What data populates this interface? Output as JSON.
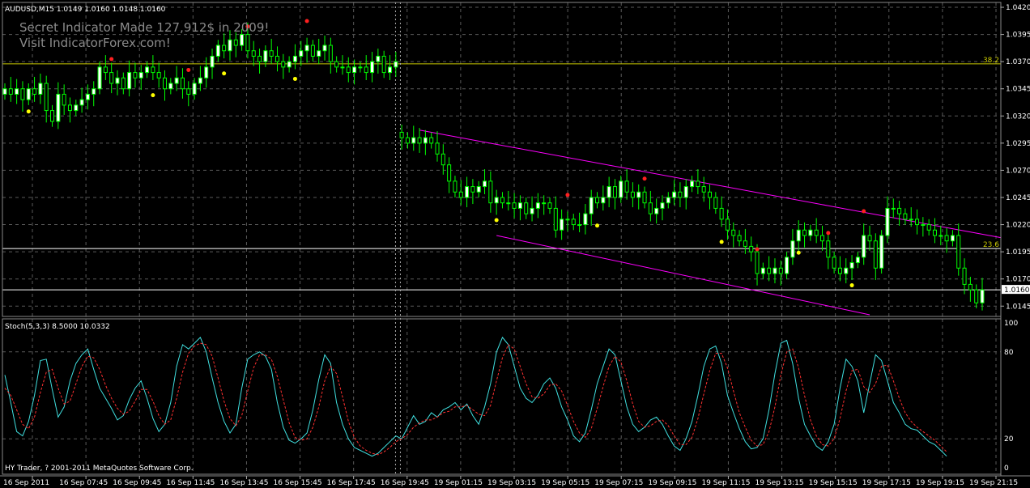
{
  "window": {
    "title": "AUDUSD,M15  1.0149 1.0160 1.0148 1.0160"
  },
  "watermark": {
    "line1": "Secret Indicator Made 127,912$ in 2009!",
    "line2": "Visit IndicatorForex.com!"
  },
  "colors": {
    "background": "#000000",
    "grid": "#5a5a5a",
    "bull_candle": "#ffffff",
    "bear_candle": "#000000",
    "candle_outline": "#00ff00",
    "fib_line": "#c8c800",
    "channel": "#ff00ff",
    "stoch_main": "#40e0e0",
    "stoch_signal": "#ff3030",
    "dot_up": "#ffff00",
    "dot_down": "#ff2020"
  },
  "price_axis": {
    "ticks": [
      "1.0420",
      "1.0395",
      "1.0370",
      "1.0345",
      "1.0320",
      "1.0295",
      "1.0270",
      "1.0245",
      "1.0220",
      "1.0195",
      "1.0170",
      "1.0160",
      "1.0145"
    ]
  },
  "levels": {
    "fib_382": "38.2",
    "fib_236": "23.6",
    "current_price": "1.0160"
  },
  "indicator": {
    "title": "Stoch(5,3,3) 8.5000 10.0332",
    "ticks": [
      "100",
      "80",
      "20",
      "0"
    ],
    "footer": "HY Trader, ? 2001-2011 MetaQuotes Software Corp."
  },
  "time_axis": {
    "labels": [
      "16 Sep 2011",
      "16 Sep 07:45",
      "16 Sep 09:45",
      "16 Sep 11:45",
      "16 Sep 13:45",
      "16 Sep 15:45",
      "16 Sep 17:45",
      "16 Sep 19:45",
      "19 Sep 01:15",
      "19 Sep 03:15",
      "19 Sep 05:15",
      "19 Sep 07:15",
      "19 Sep 09:15",
      "19 Sep 11:15",
      "19 Sep 13:15",
      "19 Sep 15:15",
      "19 Sep 17:15",
      "19 Sep 19:15",
      "19 Sep 21:15"
    ]
  },
  "chart_data": {
    "type": "candlestick",
    "symbol": "AUDUSD",
    "timeframe": "M15",
    "ylim": [
      1.0137,
      1.0423
    ],
    "close": [
      1.0345,
      1.034,
      1.0345,
      1.0335,
      1.0345,
      1.034,
      1.035,
      1.0325,
      1.0315,
      1.034,
      1.033,
      1.0325,
      1.033,
      1.0335,
      1.034,
      1.0345,
      1.0365,
      1.036,
      1.035,
      1.0355,
      1.0345,
      1.036,
      1.0355,
      1.036,
      1.0365,
      1.036,
      1.0355,
      1.0345,
      1.035,
      1.0355,
      1.0345,
      1.034,
      1.035,
      1.0355,
      1.0365,
      1.0375,
      1.0385,
      1.038,
      1.039,
      1.0385,
      1.0395,
      1.038,
      1.0375,
      1.037,
      1.038,
      1.0375,
      1.037,
      1.0365,
      1.037,
      1.0375,
      1.038,
      1.0385,
      1.0375,
      1.038,
      1.0385,
      1.037,
      1.0365,
      1.0365,
      1.036,
      1.0365,
      1.0365,
      1.036,
      1.037,
      1.0375,
      1.036,
      1.0365,
      1.037,
      1.03,
      1.0295,
      1.03,
      1.0295,
      1.03,
      1.0295,
      1.0285,
      1.0275,
      1.026,
      1.025,
      1.0245,
      1.0255,
      1.025,
      1.0255,
      1.026,
      1.024,
      1.0245,
      1.024,
      1.024,
      1.0235,
      1.024,
      1.023,
      1.0235,
      1.024,
      1.024,
      1.0235,
      1.0215,
      1.0225,
      1.0225,
      1.022,
      1.022,
      1.023,
      1.0245,
      1.024,
      1.0245,
      1.0255,
      1.0245,
      1.026,
      1.025,
      1.0245,
      1.025,
      1.024,
      1.023,
      1.0235,
      1.024,
      1.0245,
      1.025,
      1.0245,
      1.0255,
      1.026,
      1.0255,
      1.025,
      1.0245,
      1.0235,
      1.0225,
      1.0215,
      1.021,
      1.0205,
      1.02,
      1.0195,
      1.0175,
      1.018,
      1.0175,
      1.018,
      1.0175,
      1.019,
      1.0205,
      1.0215,
      1.021,
      1.0215,
      1.021,
      1.0205,
      1.019,
      1.018,
      1.0175,
      1.018,
      1.0185,
      1.019,
      1.021,
      1.0205,
      1.018,
      1.021,
      1.0235,
      1.0235,
      1.023,
      1.0225,
      1.0225,
      1.022,
      1.022,
      1.0215,
      1.021,
      1.021,
      1.0205,
      1.021,
      1.018,
      1.0165,
      1.016,
      1.0148,
      1.016
    ],
    "stoch_main": [
      64,
      45,
      25,
      22,
      32,
      50,
      74,
      75,
      54,
      35,
      42,
      60,
      72,
      78,
      82,
      68,
      55,
      48,
      41,
      33,
      36,
      47,
      55,
      60,
      48,
      34,
      25,
      30,
      45,
      70,
      85,
      82,
      86,
      90,
      80,
      62,
      45,
      32,
      24,
      30,
      55,
      75,
      78,
      80,
      77,
      68,
      45,
      28,
      19,
      17,
      20,
      24,
      40,
      61,
      78,
      72,
      45,
      30,
      20,
      14,
      12,
      10,
      8,
      10,
      14,
      18,
      22,
      20,
      28,
      36,
      30,
      32,
      38,
      35,
      40,
      42,
      45,
      40,
      44,
      36,
      30,
      42,
      58,
      80,
      90,
      85,
      70,
      55,
      48,
      45,
      50,
      58,
      62,
      55,
      42,
      33,
      22,
      18,
      24,
      40,
      58,
      70,
      82,
      78,
      60,
      42,
      30,
      25,
      28,
      33,
      35,
      30,
      22,
      15,
      12,
      20,
      32,
      50,
      70,
      82,
      84,
      72,
      50,
      38,
      27,
      18,
      13,
      14,
      20,
      40,
      65,
      86,
      88,
      72,
      48,
      30,
      22,
      15,
      12,
      18,
      30,
      55,
      75,
      70,
      60,
      38,
      58,
      78,
      74,
      60,
      45,
      38,
      30,
      27,
      26,
      22,
      18,
      16,
      12,
      8
    ],
    "stoch_signal": [
      55,
      50,
      40,
      30,
      27,
      35,
      52,
      66,
      68,
      55,
      44,
      46,
      58,
      70,
      77,
      76,
      68,
      57,
      48,
      41,
      37,
      39,
      46,
      54,
      54,
      46,
      36,
      30,
      33,
      48,
      66,
      79,
      84,
      86,
      85,
      77,
      62,
      46,
      34,
      29,
      36,
      53,
      69,
      78,
      78,
      75,
      63,
      47,
      31,
      21,
      19,
      20,
      28,
      42,
      60,
      70,
      65,
      49,
      32,
      21,
      15,
      12,
      10,
      9,
      11,
      14,
      18,
      20,
      23,
      28,
      31,
      33,
      33,
      35,
      38,
      39,
      42,
      42,
      43,
      40,
      37,
      36,
      43,
      60,
      76,
      85,
      82,
      70,
      58,
      49,
      48,
      51,
      57,
      58,
      53,
      43,
      32,
      24,
      21,
      27,
      41,
      56,
      70,
      77,
      73,
      60,
      44,
      32,
      28,
      29,
      32,
      33,
      29,
      22,
      16,
      16,
      21,
      34,
      51,
      67,
      79,
      79,
      69,
      53,
      38,
      28,
      19,
      15,
      16,
      25,
      42,
      64,
      80,
      82,
      69,
      50,
      33,
      22,
      16,
      15,
      20,
      34,
      53,
      67,
      68,
      56,
      52,
      58,
      70,
      71,
      60,
      48,
      38,
      32,
      28,
      25,
      22,
      19,
      15,
      11
    ],
    "markers": [
      {
        "idx": 4,
        "side": "low",
        "color": "yellow"
      },
      {
        "idx": 18,
        "side": "high",
        "color": "red"
      },
      {
        "idx": 25,
        "side": "low",
        "color": "yellow"
      },
      {
        "idx": 31,
        "side": "high",
        "color": "red"
      },
      {
        "idx": 37,
        "side": "low",
        "color": "yellow"
      },
      {
        "idx": 41,
        "side": "high",
        "color": "red"
      },
      {
        "idx": 49,
        "side": "low",
        "color": "yellow"
      },
      {
        "idx": 51,
        "side": "high",
        "color": "red"
      },
      {
        "idx": 83,
        "side": "low",
        "color": "yellow"
      },
      {
        "idx": 95,
        "side": "high",
        "color": "red"
      },
      {
        "idx": 100,
        "side": "low",
        "color": "yellow"
      },
      {
        "idx": 108,
        "side": "high",
        "color": "red"
      },
      {
        "idx": 121,
        "side": "low",
        "color": "yellow"
      },
      {
        "idx": 127,
        "side": "high",
        "color": "red"
      },
      {
        "idx": 134,
        "side": "low",
        "color": "yellow"
      },
      {
        "idx": 139,
        "side": "high",
        "color": "red"
      },
      {
        "idx": 143,
        "side": "low",
        "color": "yellow"
      },
      {
        "idx": 145,
        "side": "high",
        "color": "red"
      }
    ]
  }
}
